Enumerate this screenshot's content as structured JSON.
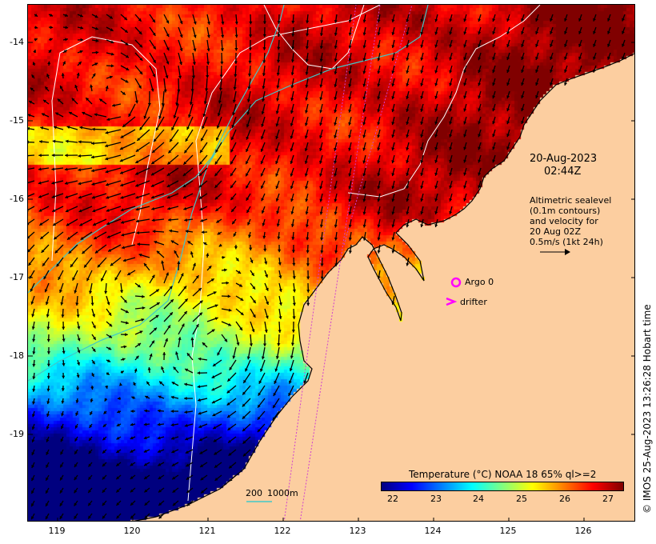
{
  "map": {
    "lon_range": [
      118.6,
      126.7
    ],
    "lat_range": [
      -13.55,
      -20.1
    ],
    "lon_ticks": [
      119,
      120,
      121,
      122,
      123,
      124,
      125,
      126
    ],
    "lon_tick_labels": [
      "119",
      "120",
      "121",
      "122",
      "123",
      "124",
      "125",
      "126"
    ],
    "lat_ticks": [
      -14,
      -15,
      -16,
      -17,
      -18,
      -19
    ],
    "lat_tick_labels": [
      "-14",
      "-15",
      "-16",
      "-17",
      "-18",
      "-19"
    ],
    "land_color": "#fcceA0",
    "coast_color": "#000000",
    "contour_color": "#ffffff",
    "bathy_200_color": "#40c8c8",
    "argo_color": "#ff00ff"
  },
  "annotations": {
    "date": "20-Aug-2023",
    "time": "02:44Z",
    "sealevel_lines": [
      "Altimetric sealevel",
      "(0.1m contours)",
      "and velocity for",
      "20 Aug 02Z",
      "0.5m/s (1kt 24h)"
    ],
    "argo_label": "Argo 0",
    "drifter_label": "drifter",
    "bathy_200": "200",
    "bathy_1000": "1000m"
  },
  "colorbar": {
    "title": "Temperature (°C) NOAA 18 65% ql>=2",
    "tick_labels": [
      "22",
      "23",
      "24",
      "25",
      "26",
      "27"
    ],
    "range": [
      21.7,
      27.4
    ],
    "colors": [
      "#00007f",
      "#0000ff",
      "#0080ff",
      "#00ffff",
      "#80ff80",
      "#ffff00",
      "#ff8000",
      "#ff0000",
      "#7f0000"
    ]
  },
  "credit": "© IMOS 25-Aug-2023 13:26:28 Hobart time"
}
